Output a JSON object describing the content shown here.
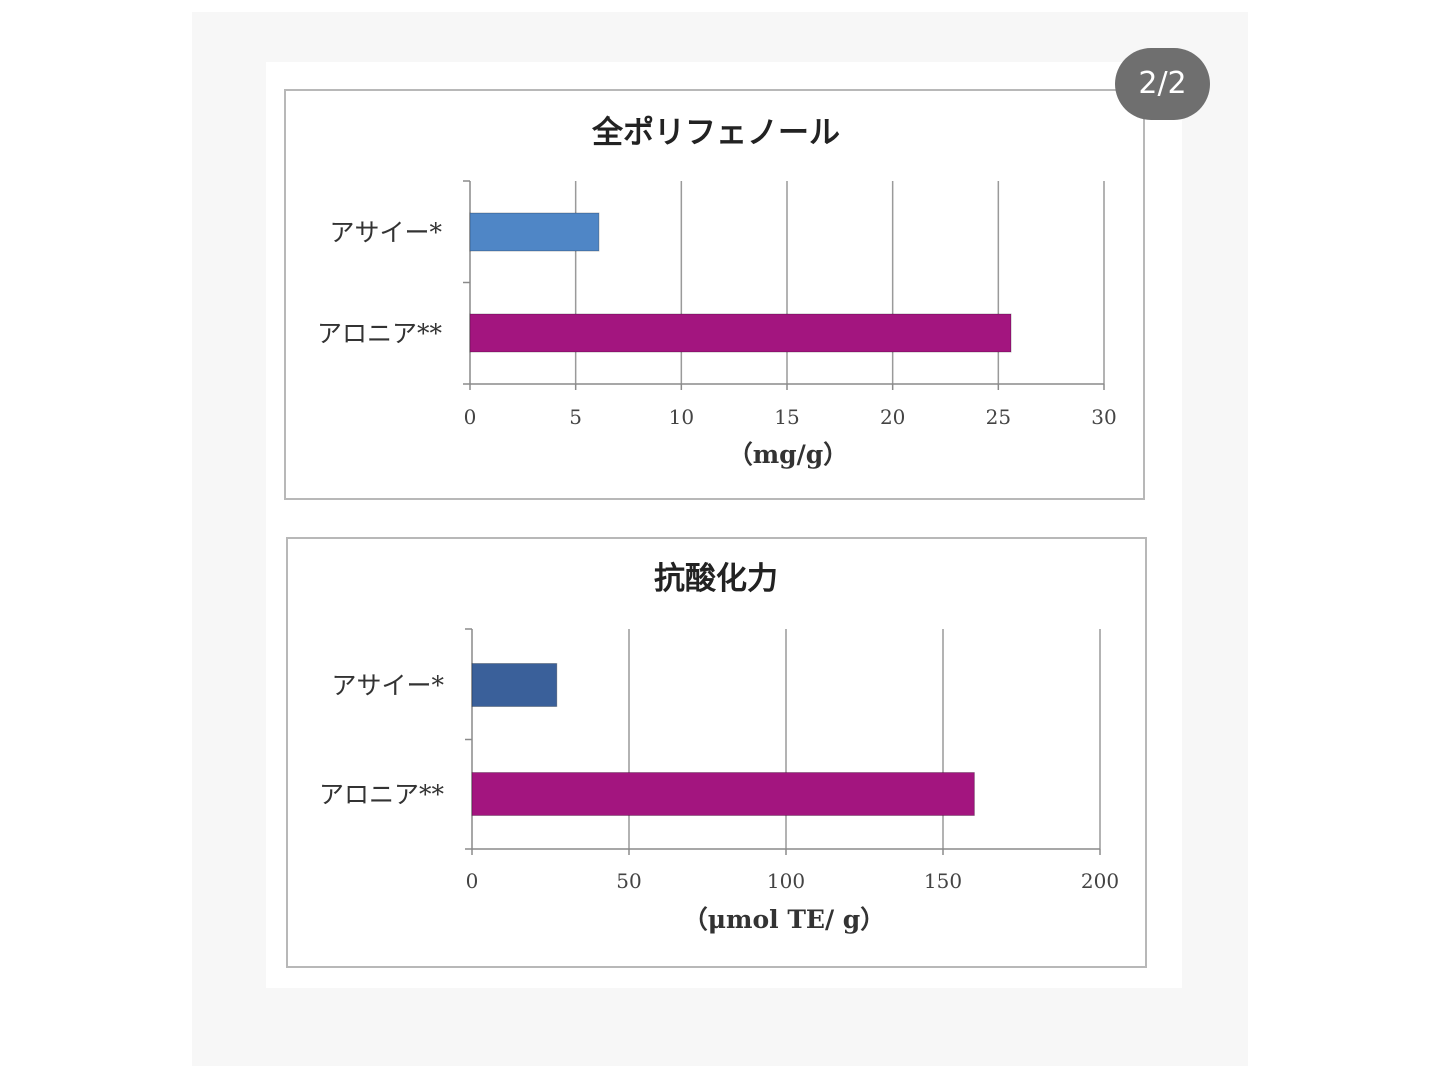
{
  "viewer": {
    "page_indicator": "2/2"
  },
  "chart_data": [
    {
      "type": "bar",
      "orientation": "horizontal",
      "title": "全ポリフェノール",
      "categories": [
        "アサイー*",
        "アロニア**"
      ],
      "values": [
        6.1,
        25.6
      ],
      "xlabel": "（mg/g）",
      "xlim": [
        0,
        30
      ],
      "ticks": [
        0,
        5,
        10,
        15,
        20,
        25,
        30
      ],
      "tick_labels": [
        "0",
        "5",
        "10",
        "15",
        "20",
        "25",
        "30"
      ],
      "grid": "vertical",
      "colors": [
        "#4f86c6",
        "#a3157f"
      ]
    },
    {
      "type": "bar",
      "orientation": "horizontal",
      "title": "抗酸化力",
      "categories": [
        "アサイー*",
        "アロニア**"
      ],
      "values": [
        27,
        160
      ],
      "xlabel": "（μmol TE/ g）",
      "xlim": [
        0,
        200
      ],
      "ticks": [
        0,
        50,
        100,
        150,
        200
      ],
      "tick_labels": [
        "0",
        "50",
        "100",
        "150",
        "200"
      ],
      "grid": "vertical",
      "colors": [
        "#3a609a",
        "#a3157f"
      ]
    }
  ]
}
